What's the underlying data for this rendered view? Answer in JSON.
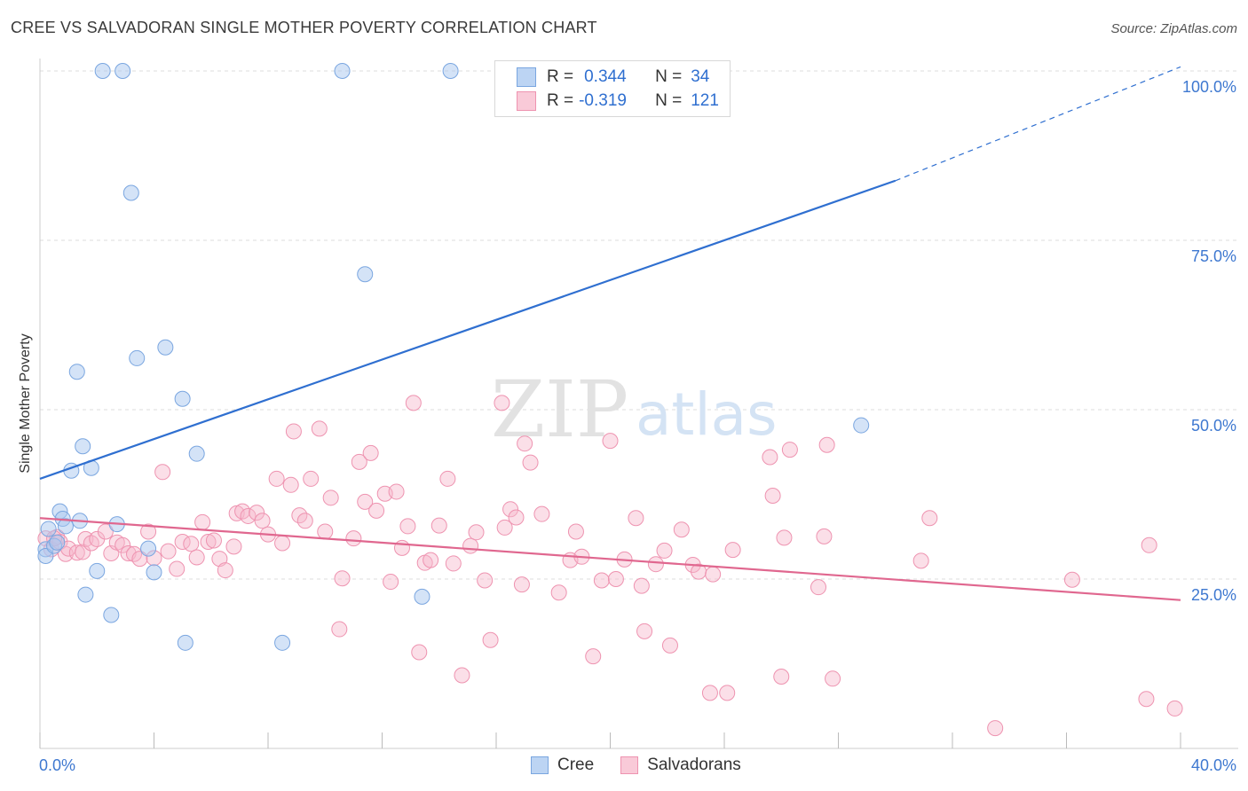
{
  "title": "CREE VS SALVADORAN SINGLE MOTHER POVERTY CORRELATION CHART",
  "source": "Source: ZipAtlas.com",
  "watermark": {
    "zip": "ZIP",
    "atlas": "atlas"
  },
  "legend_top": {
    "rows": [
      {
        "r_label": "R =",
        "r_value": "0.344",
        "n_label": "N =",
        "n_value": "34"
      },
      {
        "r_label": "R =",
        "r_value": "-0.319",
        "n_label": "N =",
        "n_value": "121"
      }
    ]
  },
  "colors": {
    "cree_fill": "#a9c8f0",
    "cree_stroke": "#7aa6e0",
    "cree_line": "#2f6fd0",
    "salv_fill": "#f6b9cb",
    "salv_stroke": "#ee93b0",
    "salv_line": "#e0678f",
    "tick_label": "#3e78d0",
    "grid": "#dddddd"
  },
  "chart_data": {
    "type": "scatter",
    "title": "CREE VS SALVADORAN SINGLE MOTHER POVERTY CORRELATION CHART",
    "xlabel": "",
    "ylabel": "Single Mother Poverty",
    "xlim": [
      0,
      40
    ],
    "ylim": [
      0,
      103
    ],
    "x_tick_labels": [
      "0.0%",
      "40.0%"
    ],
    "y_ticks": [
      25,
      50,
      75,
      100
    ],
    "y_tick_labels": [
      "25.0%",
      "50.0%",
      "75.0%",
      "100.0%"
    ],
    "grid": true,
    "legend_position": "bottom-center",
    "series": [
      {
        "name": "Cree",
        "r": 0.344,
        "n": 34,
        "trend": {
          "x0": 0,
          "y0": 39.8,
          "x1": 30,
          "y1": 83.8,
          "dash_x1": 40,
          "dash_y1": 100.6
        },
        "points": [
          [
            0.2,
            29.4
          ],
          [
            0.2,
            28.4
          ],
          [
            0.3,
            32.4
          ],
          [
            0.5,
            29.9
          ],
          [
            0.6,
            30.4
          ],
          [
            0.7,
            35.0
          ],
          [
            0.8,
            33.9
          ],
          [
            0.9,
            32.8
          ],
          [
            1.1,
            41.0
          ],
          [
            1.3,
            55.6
          ],
          [
            1.4,
            33.6
          ],
          [
            1.5,
            44.6
          ],
          [
            1.6,
            22.7
          ],
          [
            1.8,
            41.4
          ],
          [
            2.0,
            26.2
          ],
          [
            2.2,
            100.0
          ],
          [
            2.5,
            19.7
          ],
          [
            2.7,
            33.1
          ],
          [
            2.9,
            100.0
          ],
          [
            3.2,
            82.0
          ],
          [
            3.4,
            57.6
          ],
          [
            3.8,
            29.5
          ],
          [
            4.0,
            26.0
          ],
          [
            4.4,
            59.2
          ],
          [
            5.0,
            51.6
          ],
          [
            5.1,
            15.6
          ],
          [
            5.5,
            43.5
          ],
          [
            8.5,
            15.6
          ],
          [
            10.6,
            100.0
          ],
          [
            11.4,
            70.0
          ],
          [
            13.4,
            22.4
          ],
          [
            14.4,
            100.0
          ],
          [
            17.7,
            100.0
          ],
          [
            28.8,
            47.7
          ]
        ]
      },
      {
        "name": "Salvadorans",
        "r": -0.319,
        "n": 121,
        "trend": {
          "x0": 0,
          "y0": 34.0,
          "x1": 40,
          "y1": 21.9
        },
        "points": [
          [
            0.2,
            31.0
          ],
          [
            0.4,
            29.4
          ],
          [
            0.6,
            31.2
          ],
          [
            0.7,
            30.5
          ],
          [
            0.9,
            28.7
          ],
          [
            1.0,
            29.5
          ],
          [
            1.3,
            28.9
          ],
          [
            1.5,
            29.0
          ],
          [
            1.6,
            30.9
          ],
          [
            1.8,
            30.3
          ],
          [
            2.0,
            30.9
          ],
          [
            2.3,
            32.0
          ],
          [
            2.5,
            28.8
          ],
          [
            2.7,
            30.4
          ],
          [
            2.9,
            30.0
          ],
          [
            3.1,
            28.8
          ],
          [
            3.3,
            28.7
          ],
          [
            3.5,
            28.0
          ],
          [
            3.8,
            32.0
          ],
          [
            4.0,
            28.1
          ],
          [
            4.3,
            40.8
          ],
          [
            4.5,
            29.1
          ],
          [
            4.8,
            26.5
          ],
          [
            5.0,
            30.5
          ],
          [
            5.3,
            30.2
          ],
          [
            5.5,
            28.2
          ],
          [
            5.7,
            33.4
          ],
          [
            5.9,
            30.5
          ],
          [
            6.1,
            30.7
          ],
          [
            6.3,
            28.0
          ],
          [
            6.5,
            26.3
          ],
          [
            6.8,
            29.8
          ],
          [
            6.9,
            34.7
          ],
          [
            7.1,
            35.0
          ],
          [
            7.3,
            34.3
          ],
          [
            7.6,
            34.8
          ],
          [
            7.8,
            33.6
          ],
          [
            8.0,
            31.6
          ],
          [
            8.3,
            39.8
          ],
          [
            8.5,
            30.3
          ],
          [
            8.8,
            38.9
          ],
          [
            8.9,
            46.8
          ],
          [
            9.1,
            34.4
          ],
          [
            9.3,
            33.6
          ],
          [
            9.5,
            39.8
          ],
          [
            9.8,
            47.2
          ],
          [
            10.0,
            32.0
          ],
          [
            10.2,
            37.0
          ],
          [
            10.5,
            17.6
          ],
          [
            10.6,
            25.1
          ],
          [
            11.0,
            31.0
          ],
          [
            11.2,
            42.3
          ],
          [
            11.4,
            36.4
          ],
          [
            11.6,
            43.6
          ],
          [
            11.8,
            35.1
          ],
          [
            12.1,
            37.6
          ],
          [
            12.3,
            24.6
          ],
          [
            12.5,
            37.9
          ],
          [
            12.7,
            29.6
          ],
          [
            12.9,
            32.8
          ],
          [
            13.1,
            51.0
          ],
          [
            13.3,
            14.2
          ],
          [
            13.5,
            27.4
          ],
          [
            13.7,
            27.8
          ],
          [
            14.0,
            32.9
          ],
          [
            14.3,
            39.8
          ],
          [
            14.5,
            27.3
          ],
          [
            14.8,
            10.8
          ],
          [
            15.1,
            29.9
          ],
          [
            15.3,
            31.9
          ],
          [
            15.6,
            24.8
          ],
          [
            15.8,
            16.0
          ],
          [
            16.2,
            51.0
          ],
          [
            16.3,
            32.6
          ],
          [
            16.5,
            35.3
          ],
          [
            16.7,
            34.1
          ],
          [
            16.9,
            24.2
          ],
          [
            17.0,
            45.0
          ],
          [
            17.2,
            42.2
          ],
          [
            17.6,
            34.6
          ],
          [
            18.2,
            23.0
          ],
          [
            18.6,
            27.8
          ],
          [
            18.8,
            32.0
          ],
          [
            19.0,
            28.3
          ],
          [
            19.4,
            13.6
          ],
          [
            19.7,
            24.8
          ],
          [
            20.0,
            45.4
          ],
          [
            20.2,
            25.0
          ],
          [
            20.5,
            27.9
          ],
          [
            20.9,
            34.0
          ],
          [
            21.1,
            24.0
          ],
          [
            21.2,
            17.3
          ],
          [
            21.6,
            27.2
          ],
          [
            21.9,
            29.2
          ],
          [
            22.1,
            15.2
          ],
          [
            22.5,
            32.3
          ],
          [
            22.9,
            27.1
          ],
          [
            23.1,
            26.1
          ],
          [
            23.5,
            8.2
          ],
          [
            23.6,
            25.7
          ],
          [
            24.1,
            8.2
          ],
          [
            24.3,
            29.3
          ],
          [
            25.6,
            43.0
          ],
          [
            25.7,
            37.3
          ],
          [
            26.0,
            10.6
          ],
          [
            26.1,
            31.1
          ],
          [
            26.3,
            44.1
          ],
          [
            27.3,
            23.8
          ],
          [
            27.5,
            31.3
          ],
          [
            27.6,
            44.8
          ],
          [
            27.8,
            10.3
          ],
          [
            30.9,
            27.7
          ],
          [
            31.2,
            34.0
          ],
          [
            33.5,
            3.0
          ],
          [
            36.2,
            24.9
          ],
          [
            38.8,
            7.3
          ],
          [
            38.9,
            30.0
          ],
          [
            39.8,
            5.9
          ],
          [
            0.5,
            31.0
          ]
        ]
      }
    ]
  }
}
